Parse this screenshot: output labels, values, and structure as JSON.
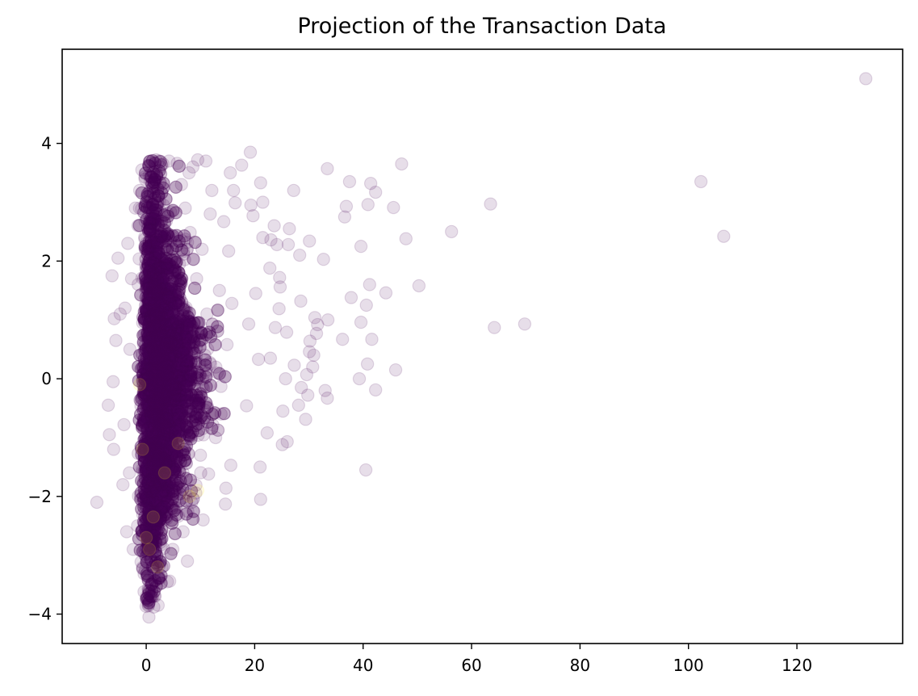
{
  "chart_data": {
    "type": "scatter",
    "title": "Projection of the Transaction Data",
    "xlabel": "",
    "ylabel": "",
    "xlim": [
      -15.5,
      139.5
    ],
    "ylim": [
      -4.5,
      5.6
    ],
    "xticks": [
      0,
      20,
      40,
      60,
      80,
      100,
      120
    ],
    "xtick_labels": [
      "0",
      "20",
      "40",
      "60",
      "80",
      "100",
      "120"
    ],
    "yticks": [
      -4,
      -2,
      0,
      2,
      4
    ],
    "ytick_labels": [
      "−4",
      "−2",
      "0",
      "2",
      "4"
    ],
    "grid": false,
    "legend": "none",
    "colors": {
      "primary": "#440154",
      "secondary": "#fde725",
      "marker_alpha": 0.13
    },
    "series": [
      {
        "color": "#440154",
        "points": [
          [
            132.7,
            5.1
          ],
          [
            102.3,
            3.35
          ],
          [
            106.5,
            2.42
          ],
          [
            69.8,
            0.93
          ],
          [
            64.2,
            0.87
          ],
          [
            63.5,
            2.97
          ],
          [
            56.3,
            2.5
          ],
          [
            50.3,
            1.58
          ],
          [
            47.9,
            2.38
          ],
          [
            47.1,
            3.65
          ],
          [
            46.0,
            0.15
          ],
          [
            45.6,
            2.91
          ],
          [
            44.2,
            1.46
          ],
          [
            42.3,
            3.17
          ],
          [
            42.3,
            -0.19
          ],
          [
            41.6,
            0.67
          ],
          [
            41.4,
            3.32
          ],
          [
            41.2,
            1.6
          ],
          [
            40.9,
            2.96
          ],
          [
            40.8,
            0.25
          ],
          [
            40.6,
            1.25
          ],
          [
            40.5,
            -1.55
          ],
          [
            39.6,
            0.96
          ],
          [
            39.6,
            2.25
          ],
          [
            39.3,
            0.0
          ],
          [
            37.8,
            1.38
          ],
          [
            37.5,
            3.35
          ],
          [
            36.9,
            2.93
          ],
          [
            36.6,
            2.75
          ],
          [
            36.2,
            0.67
          ],
          [
            33.4,
            3.57
          ],
          [
            33.5,
            1.0
          ],
          [
            33.4,
            -0.33
          ],
          [
            33.0,
            -0.2
          ],
          [
            32.7,
            2.03
          ],
          [
            31.6,
            0.92
          ],
          [
            31.4,
            0.77
          ],
          [
            31.1,
            1.04
          ],
          [
            30.9,
            0.4
          ],
          [
            30.7,
            0.2
          ],
          [
            30.1,
            0.46
          ],
          [
            30.2,
            0.64
          ],
          [
            30.1,
            2.34
          ],
          [
            29.8,
            -0.28
          ],
          [
            29.4,
            -0.69
          ],
          [
            29.6,
            0.07
          ],
          [
            28.5,
            1.32
          ],
          [
            28.3,
            2.1
          ],
          [
            28.6,
            -0.15
          ],
          [
            28.1,
            -0.45
          ],
          [
            27.2,
            3.2
          ],
          [
            27.3,
            0.23
          ],
          [
            26.4,
            2.55
          ],
          [
            26.2,
            2.28
          ],
          [
            25.9,
            0.79
          ],
          [
            25.7,
            -0.0
          ],
          [
            26.0,
            -1.07
          ],
          [
            25.2,
            -0.55
          ],
          [
            25.1,
            -1.12
          ],
          [
            24.7,
            1.56
          ],
          [
            24.6,
            1.72
          ],
          [
            24.5,
            1.19
          ],
          [
            24.1,
            2.28
          ],
          [
            23.8,
            0.87
          ],
          [
            23.6,
            2.6
          ],
          [
            23.0,
            2.36
          ],
          [
            22.8,
            1.88
          ],
          [
            22.9,
            0.35
          ],
          [
            22.3,
            -0.92
          ],
          [
            21.5,
            3.0
          ],
          [
            21.5,
            2.4
          ],
          [
            21.1,
            3.33
          ],
          [
            21.0,
            -1.5
          ],
          [
            21.1,
            -2.05
          ],
          [
            20.7,
            0.33
          ],
          [
            20.2,
            1.45
          ],
          [
            19.7,
            2.77
          ],
          [
            19.3,
            2.95
          ],
          [
            19.2,
            3.85
          ],
          [
            18.9,
            0.93
          ],
          [
            18.5,
            -0.46
          ],
          [
            17.6,
            3.63
          ],
          [
            16.4,
            2.99
          ],
          [
            16.1,
            3.2
          ],
          [
            15.8,
            1.28
          ],
          [
            15.6,
            -1.47
          ],
          [
            15.5,
            3.5
          ],
          [
            15.2,
            2.17
          ],
          [
            14.9,
            0.58
          ],
          [
            14.7,
            -1.86
          ],
          [
            14.6,
            -2.13
          ],
          [
            14.3,
            2.67
          ],
          [
            13.8,
            -0.6
          ],
          [
            13.5,
            1.5
          ],
          [
            13.1,
            0.1
          ],
          [
            12.8,
            -1.0
          ],
          [
            12.1,
            3.2
          ],
          [
            11.8,
            2.8
          ],
          [
            11.5,
            -1.62
          ],
          [
            11.2,
            1.1
          ],
          [
            11.0,
            3.7
          ],
          [
            10.8,
            0.4
          ],
          [
            10.5,
            -2.4
          ],
          [
            10.3,
            2.2
          ],
          [
            10.0,
            -1.3
          ],
          [
            9.5,
            3.72
          ],
          [
            9.3,
            1.7
          ],
          [
            9.1,
            -0.7
          ],
          [
            8.6,
            3.6
          ],
          [
            8.4,
            -2.1
          ],
          [
            7.9,
            3.5
          ],
          [
            7.7,
            0.9
          ],
          [
            7.6,
            -3.1
          ],
          [
            7.2,
            2.9
          ],
          [
            6.8,
            -2.6
          ],
          [
            6.5,
            3.3
          ],
          [
            6.1,
            -1.85
          ],
          [
            5.7,
            3.66
          ],
          [
            5.2,
            1.5
          ],
          [
            4.9,
            -2.9
          ],
          [
            4.2,
            3.7
          ],
          [
            3.9,
            -3.45
          ],
          [
            3.5,
            2.0
          ],
          [
            3.1,
            3.65
          ],
          [
            2.9,
            -3.2
          ],
          [
            2.6,
            0.9
          ],
          [
            2.2,
            -3.85
          ],
          [
            1.8,
            3.72
          ],
          [
            1.4,
            -3.88
          ],
          [
            0.5,
            -4.05
          ],
          [
            -0.4,
            -3.62
          ],
          [
            -0.8,
            3.55
          ],
          [
            -1.2,
            3.2
          ],
          [
            -1.5,
            2.6
          ],
          [
            -1.6,
            -2.5
          ],
          [
            -2.0,
            2.9
          ],
          [
            -2.4,
            -2.9
          ],
          [
            -2.7,
            1.7
          ],
          [
            -3.0,
            0.5
          ],
          [
            -3.1,
            -1.6
          ],
          [
            -3.4,
            2.3
          ],
          [
            -3.6,
            -2.6
          ],
          [
            -3.9,
            1.2
          ],
          [
            -4.3,
            -1.8
          ],
          [
            -4.8,
            1.1
          ],
          [
            -5.2,
            2.05
          ],
          [
            -5.6,
            0.65
          ],
          [
            -6.0,
            -1.2
          ],
          [
            -6.3,
            1.75
          ],
          [
            -6.8,
            -0.95
          ],
          [
            -7.0,
            -0.45
          ],
          [
            -5.9,
            1.02
          ],
          [
            -4.1,
            -0.78
          ],
          [
            -6.1,
            -0.05
          ],
          [
            -9.1,
            -2.1
          ]
        ]
      },
      {
        "color": "#fde725",
        "points": [
          [
            -1.2,
            -0.1
          ],
          [
            1.3,
            -2.35
          ],
          [
            0.6,
            -2.9
          ],
          [
            5.9,
            -1.1
          ],
          [
            8.0,
            -2.0
          ],
          [
            3.4,
            -1.6
          ],
          [
            -0.7,
            -1.2
          ],
          [
            9.5,
            -1.9
          ],
          [
            2.1,
            -3.2
          ],
          [
            0.0,
            -2.7
          ]
        ]
      }
    ],
    "dense_regions": [
      {
        "color": "#440154",
        "points_count": 6000,
        "note": "Very dense core of points near x between -2 and 12, y between -4 and 3.8"
      }
    ]
  }
}
